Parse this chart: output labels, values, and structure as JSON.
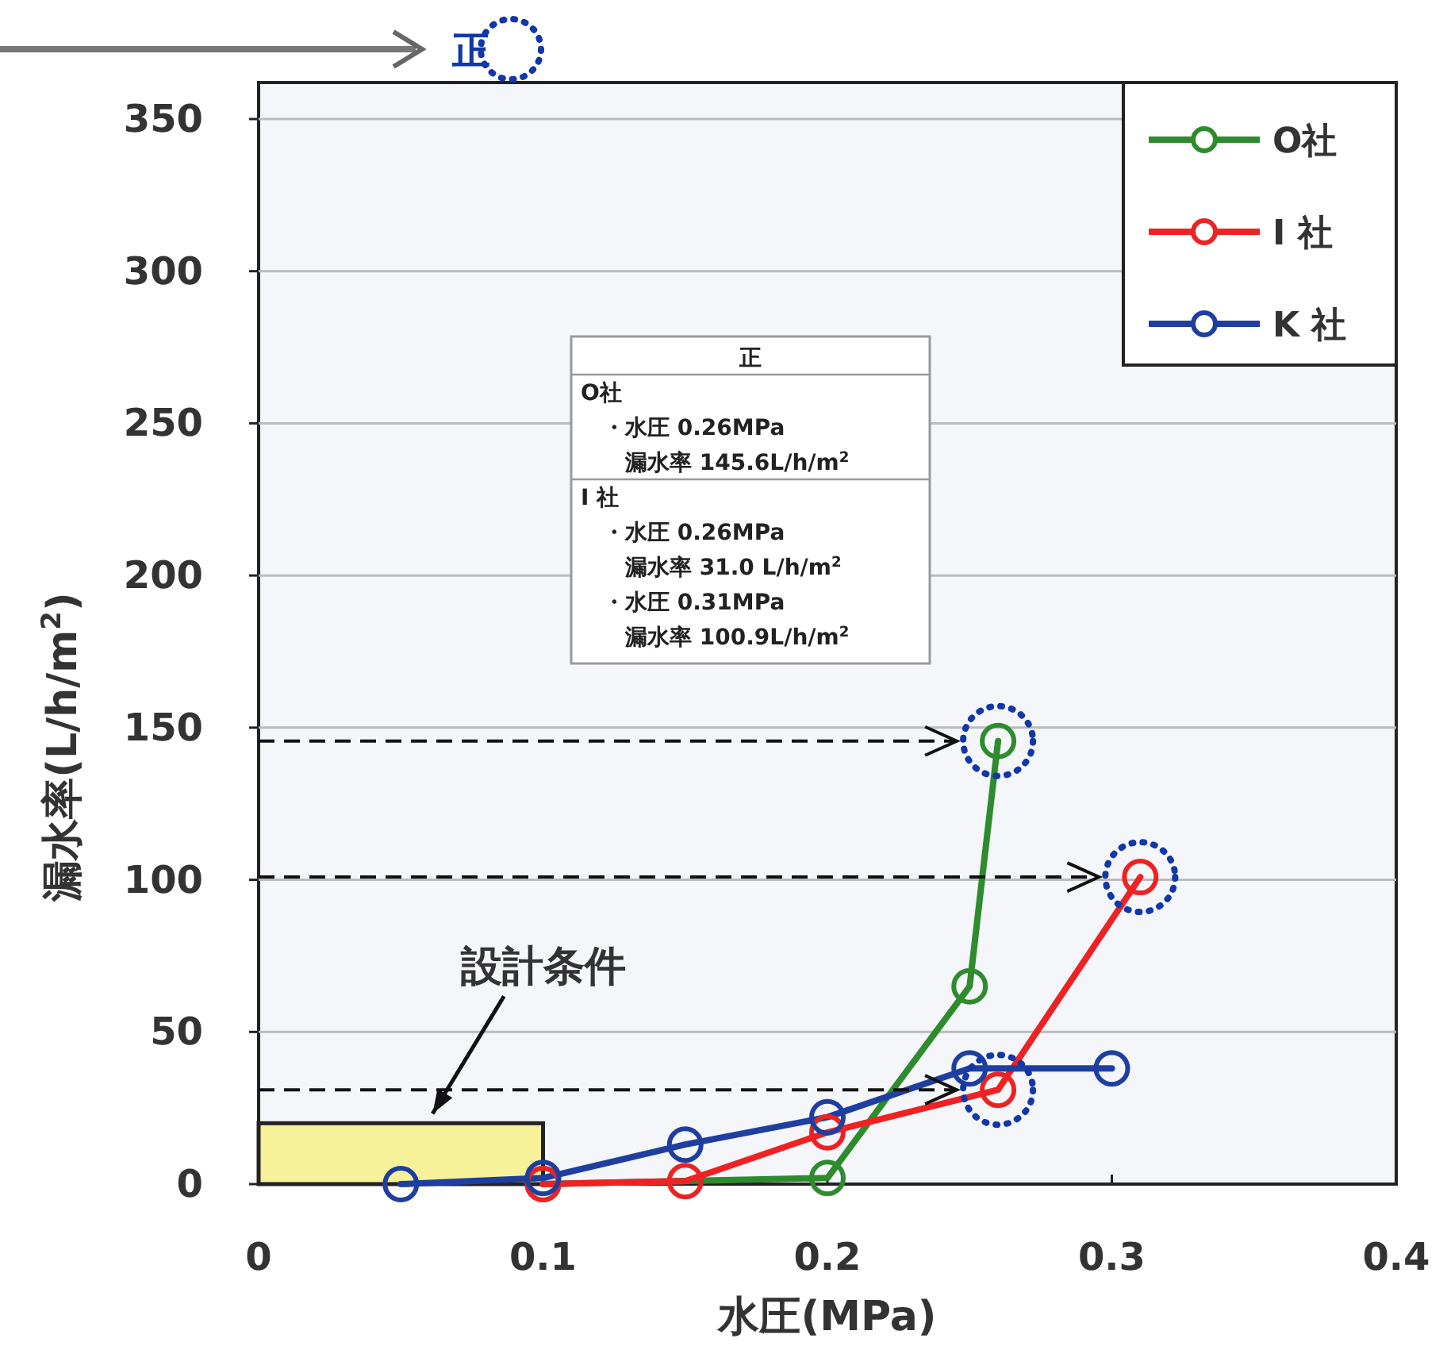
{
  "chart_data": {
    "type": "line",
    "xlabel": "水圧(MPa)",
    "ylabel": "漏水率(L/h/m$^{2}$)",
    "xlim": [
      0,
      0.4
    ],
    "xticks": [
      0,
      0.1,
      0.2,
      0.3,
      0.4
    ],
    "ylim": [
      0,
      350
    ],
    "yticks": [
      0,
      50,
      100,
      150,
      200,
      250,
      300,
      350
    ],
    "grid": "y",
    "legend": "top right",
    "marker": "circle",
    "line_style": "solid",
    "series": [
      {
        "name": "O社",
        "color": "#2e8b2e",
        "x": [
          0.1,
          0.2,
          0.25,
          0.26
        ],
        "values": [
          0,
          2,
          65,
          145.6
        ]
      },
      {
        "name": "I 社",
        "color": "#ee2222",
        "x": [
          0.1,
          0.15,
          0.2,
          0.26,
          0.31
        ],
        "values": [
          0,
          1,
          17,
          31.0,
          100.9
        ]
      },
      {
        "name": "K 社",
        "color": "#1f3fa0",
        "x": [
          0.05,
          0.1,
          0.15,
          0.2,
          0.25,
          0.3
        ],
        "values": [
          0,
          2,
          13,
          22,
          38,
          38
        ]
      },
      {
        "type": "bar",
        "color": "#f7f19a",
        "x": [
          0.05
        ],
        "values": [
          20
        ]
      }
    ],
    "ref_lines": [
      {
        "axis": "y",
        "value": 145.6,
        "color": "#111111",
        "line_style": "dashed"
      },
      {
        "axis": "y",
        "value": 100.9,
        "color": "#111111",
        "line_style": "dashed"
      },
      {
        "axis": "y",
        "value": 31.0,
        "color": "#111111",
        "line_style": "dashed"
      }
    ],
    "annotations": [
      "正",
      "正",
      "O社",
      "・水圧 0.26MPa\n漏水率 145.6L/h/m$^{2}$",
      "I 社",
      "・水圧 0.26MPa\n漏水率 31.0 L/h/m$^{2}$",
      "・水圧 0.31MPa\n漏水率 100.9L/h/m$^{2}$",
      "設計条件"
    ]
  }
}
